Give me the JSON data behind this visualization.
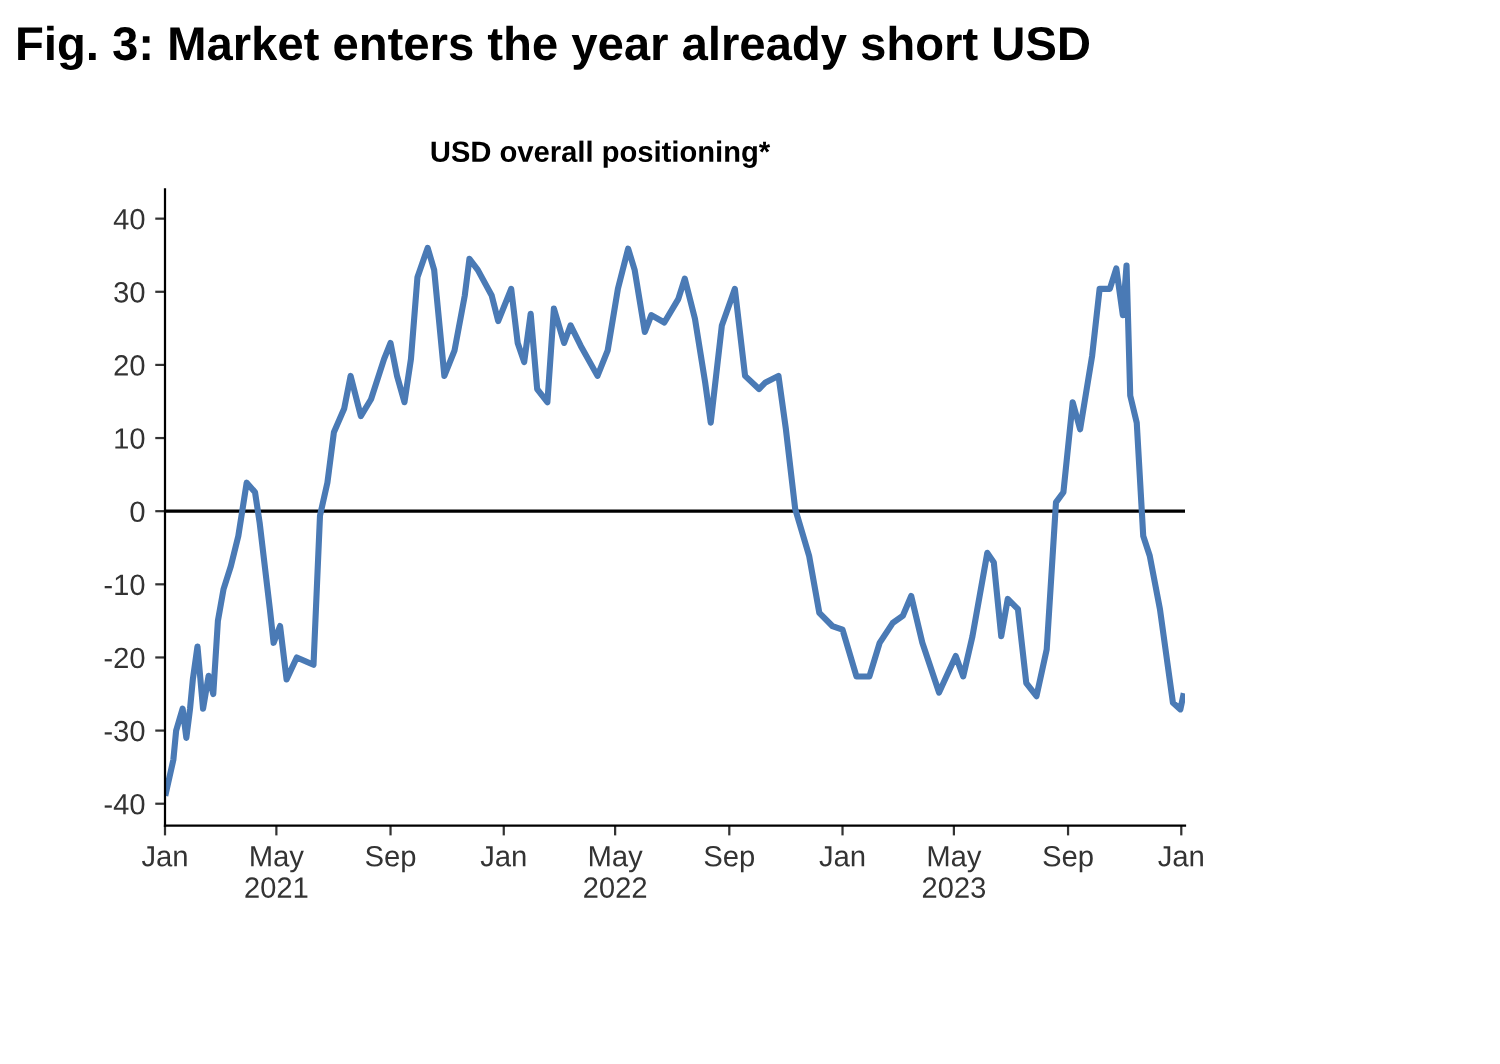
{
  "chart_data": {
    "type": "line",
    "title": "Fig. 3: Market enters the year already short USD",
    "subtitle": "USD overall positioning*",
    "x": [
      "2021-01-02",
      "2021-01-10",
      "2021-01-13",
      "2021-01-20",
      "2021-01-24",
      "2021-01-28",
      "2021-01-31",
      "2021-02-05",
      "2021-02-11",
      "2021-02-17",
      "2021-02-22",
      "2021-02-27",
      "2021-03-05",
      "2021-03-13",
      "2021-03-21",
      "2021-03-30",
      "2021-04-08",
      "2021-04-13",
      "2021-04-24",
      "2021-04-28",
      "2021-05-05",
      "2021-05-12",
      "2021-05-23",
      "2021-06-10",
      "2021-06-17",
      "2021-06-25",
      "2021-07-02",
      "2021-07-13",
      "2021-07-20",
      "2021-07-31",
      "2021-08-11",
      "2021-08-25",
      "2021-09-01",
      "2021-09-08",
      "2021-09-16",
      "2021-09-23",
      "2021-09-30",
      "2021-10-11",
      "2021-10-18",
      "2021-10-29",
      "2021-11-09",
      "2021-11-20",
      "2021-11-25",
      "2021-12-04",
      "2021-12-19",
      "2021-12-26",
      "2022-01-09",
      "2022-01-16",
      "2022-01-23",
      "2022-01-30",
      "2022-02-06",
      "2022-02-17",
      "2022-02-24",
      "2022-03-07",
      "2022-03-14",
      "2022-03-25",
      "2022-04-12",
      "2022-04-23",
      "2022-05-04",
      "2022-05-15",
      "2022-05-22",
      "2022-06-02",
      "2022-06-09",
      "2022-06-23",
      "2022-07-08",
      "2022-07-15",
      "2022-07-26",
      "2022-08-06",
      "2022-08-12",
      "2022-08-24",
      "2022-09-07",
      "2022-09-18",
      "2022-10-03",
      "2022-10-10",
      "2022-10-24",
      "2022-11-01",
      "2022-11-11",
      "2022-11-26",
      "2022-12-07",
      "2022-12-21",
      "2023-01-01",
      "2023-01-16",
      "2023-01-30",
      "2023-02-10",
      "2023-02-24",
      "2023-03-07",
      "2023-03-16",
      "2023-03-28",
      "2023-04-15",
      "2023-05-03",
      "2023-05-11",
      "2023-05-21",
      "2023-06-06",
      "2023-06-13",
      "2023-06-21",
      "2023-06-28",
      "2023-07-09",
      "2023-07-18",
      "2023-07-29",
      "2023-08-09",
      "2023-08-19",
      "2023-08-27",
      "2023-09-06",
      "2023-09-14",
      "2023-09-27",
      "2023-10-05",
      "2023-10-16",
      "2023-10-23",
      "2023-10-30",
      "2023-11-03",
      "2023-11-07",
      "2023-11-14",
      "2023-11-21",
      "2023-11-28",
      "2023-12-09",
      "2023-12-23",
      "2023-12-31",
      "2024-01-03"
    ],
    "series": [
      {
        "color": "#4a7ab5",
        "values": [
          -38.5,
          -34,
          -30,
          -27,
          -31,
          -27,
          -23,
          -18.5,
          -27,
          -22.5,
          -25,
          -15,
          -10.7,
          -7.5,
          -3.4,
          3.9,
          2.6,
          -1.6,
          -13.4,
          -18,
          -15.7,
          -23,
          -20,
          -21,
          -0.6,
          3.9,
          10.8,
          14,
          18.5,
          13,
          15.3,
          20.8,
          23,
          18.5,
          14.9,
          20.8,
          32,
          36,
          33,
          18.5,
          22,
          29.5,
          34.5,
          33,
          29.5,
          26,
          30.4,
          23,
          20.4,
          27,
          16.7,
          14.9,
          27.7,
          23,
          25.4,
          22.6,
          18.5,
          22,
          30.4,
          35.9,
          33,
          24.5,
          26.8,
          25.8,
          29,
          31.8,
          26.3,
          17.6,
          12.1,
          25.4,
          30.4,
          18.5,
          16.7,
          17.6,
          18.5,
          11.2,
          0.3,
          -6.1,
          -13.9,
          -15.7,
          -16.2,
          -22.6,
          -22.6,
          -18,
          -15.3,
          -14.3,
          -11.6,
          -18,
          -24.8,
          -19.8,
          -22.6,
          -17.1,
          -5.7,
          -7,
          -17.1,
          -12,
          -13.4,
          -23.5,
          -25.3,
          -18.9,
          1.2,
          2.6,
          14.9,
          11.2,
          21.3,
          30.4,
          30.4,
          33.2,
          26.8,
          33.6,
          15.8,
          12.1,
          -3.4,
          -6.1,
          -13.4,
          -26.2,
          -27.1,
          -25.3
        ]
      }
    ],
    "xlim": [
      "2021-01-01",
      "2024-01-05"
    ],
    "xticks": [
      {
        "value": "2021-01-01",
        "label": "Jan"
      },
      {
        "value": "2021-05-01",
        "label": "May\n2021"
      },
      {
        "value": "2021-09-01",
        "label": "Sep"
      },
      {
        "value": "2022-01-01",
        "label": "Jan"
      },
      {
        "value": "2022-05-01",
        "label": "May\n2022"
      },
      {
        "value": "2022-09-01",
        "label": "Sep"
      },
      {
        "value": "2023-01-01",
        "label": "Jan"
      },
      {
        "value": "2023-05-01",
        "label": "May\n2023"
      },
      {
        "value": "2023-09-01",
        "label": "Sep"
      },
      {
        "value": "2024-01-01",
        "label": "Jan"
      }
    ],
    "ylim": [
      -43,
      44
    ],
    "yticks": [
      -40,
      -30,
      -20,
      -10,
      0,
      10,
      20,
      30,
      40
    ],
    "ref_lines": [
      {
        "axis": "y",
        "value": 0,
        "color": "#000000"
      }
    ],
    "grid": false,
    "legend": false,
    "marker": "none",
    "line_style": "solid"
  }
}
